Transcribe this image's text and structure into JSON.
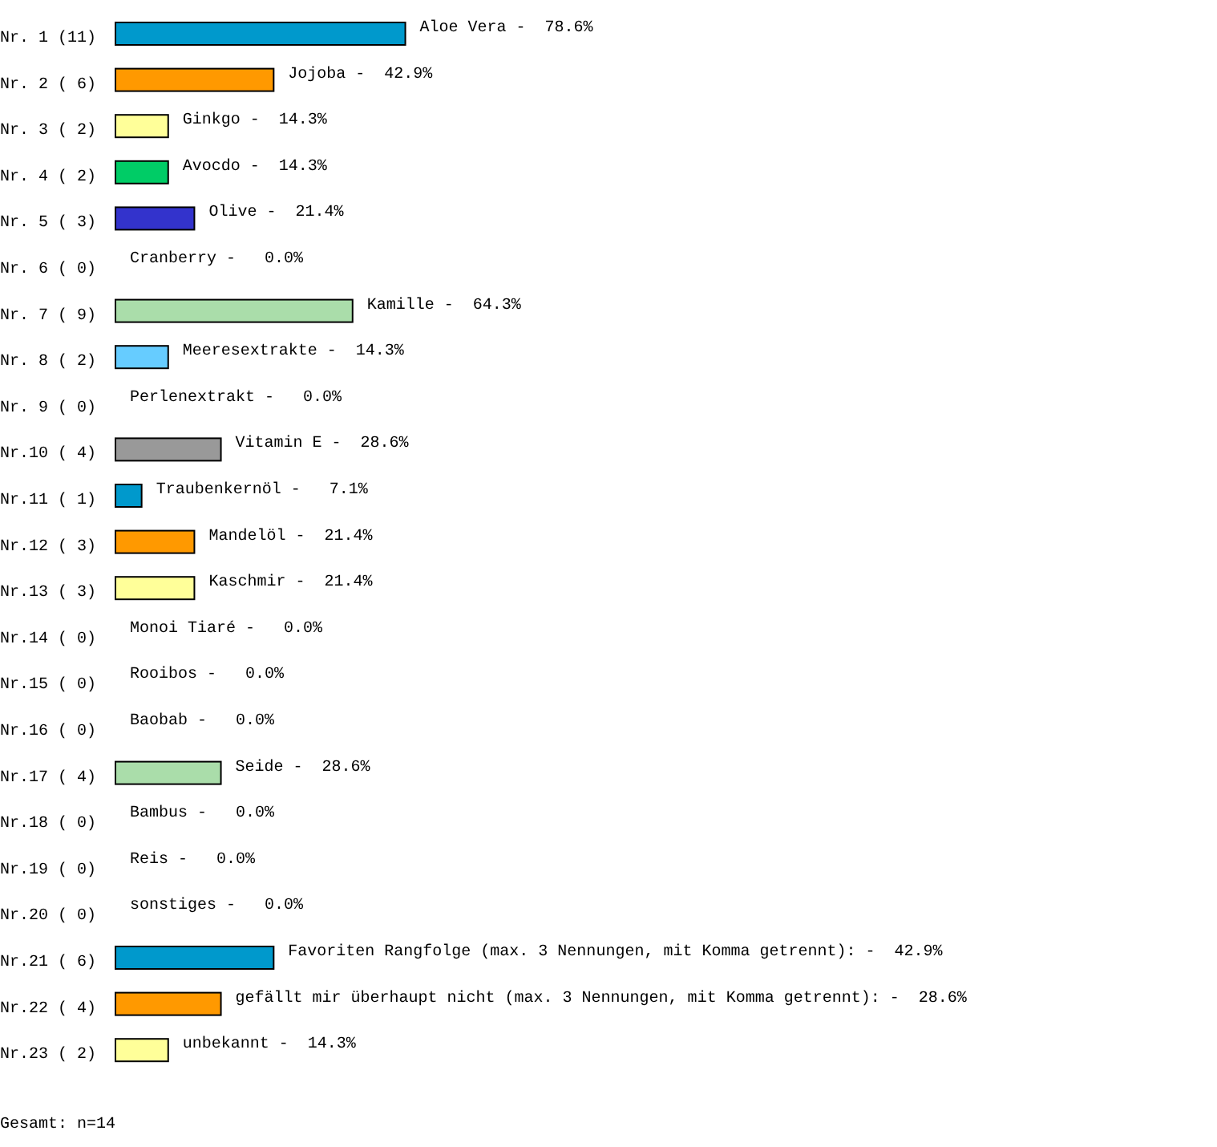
{
  "chart_data": {
    "type": "bar",
    "orientation": "horizontal",
    "categories": [
      "Nr. 1 (11)",
      "Nr. 2 ( 6)",
      "Nr. 3 ( 2)",
      "Nr. 4 ( 2)",
      "Nr. 5 ( 3)",
      "Nr. 6 ( 0)",
      "Nr. 7 ( 9)",
      "Nr. 8 ( 2)",
      "Nr. 9 ( 0)",
      "Nr.10 ( 4)",
      "Nr.11 ( 1)",
      "Nr.12 ( 3)",
      "Nr.13 ( 3)",
      "Nr.14 ( 0)",
      "Nr.15 ( 0)",
      "Nr.16 ( 0)",
      "Nr.17 ( 4)",
      "Nr.18 ( 0)",
      "Nr.19 ( 0)",
      "Nr.20 ( 0)",
      "Nr.21 ( 6)",
      "Nr.22 ( 4)",
      "Nr.23 ( 2)"
    ],
    "values": [
      78.6,
      42.9,
      14.3,
      14.3,
      21.4,
      0.0,
      64.3,
      14.3,
      0.0,
      28.6,
      7.1,
      21.4,
      21.4,
      0.0,
      0.0,
      0.0,
      28.6,
      0.0,
      0.0,
      0.0,
      42.9,
      28.6,
      14.3
    ],
    "colors": [
      "#0099cc",
      "#ff9900",
      "#ffff99",
      "#00cc66",
      "#3333cc",
      "#cc3333",
      "#aaddaa",
      "#66ccff",
      "#cc66cc",
      "#999999",
      "#0099cc",
      "#ff9900",
      "#ffff99",
      "#00cc66",
      "#3333cc",
      "#cc3333",
      "#aaddaa",
      "#66ccff",
      "#cc66cc",
      "#999999",
      "#0099cc",
      "#ff9900",
      "#ffff99"
    ],
    "value_labels": [
      "Aloe Vera ‐  78.6%",
      "Jojoba ‐  42.9%",
      "Ginkgo ‐  14.3%",
      "Avocdo ‐  14.3%",
      "Olive ‐  21.4%",
      "Cranberry ‐   0.0%",
      "Kamille ‐  64.3%",
      "Meeresextrakte ‐  14.3%",
      "Perlenextrakt ‐   0.0%",
      "Vitamin E ‐  28.6%",
      "Traubenkernöl ‐   7.1%",
      "Mandelöl ‐  21.4%",
      "Kaschmir ‐  21.4%",
      "Monoi Tiaré ‐   0.0%",
      "Rooibos ‐   0.0%",
      "Baobab ‐   0.0%",
      "Seide ‐  28.6%",
      "Bambus ‐   0.0%",
      "Reis ‐   0.0%",
      "sonstiges ‐   0.0%",
      "Favoriten Rangfolge (max. 3 Nennungen, mit Komma getrennt): ‐  42.9%",
      "gefällt mir überhaupt nicht (max. 3 Nennungen, mit Komma getrennt): ‐  28.6%",
      "unbekannt ‐  14.3%"
    ],
    "annotations": [
      "Gesamt: n=14"
    ]
  }
}
